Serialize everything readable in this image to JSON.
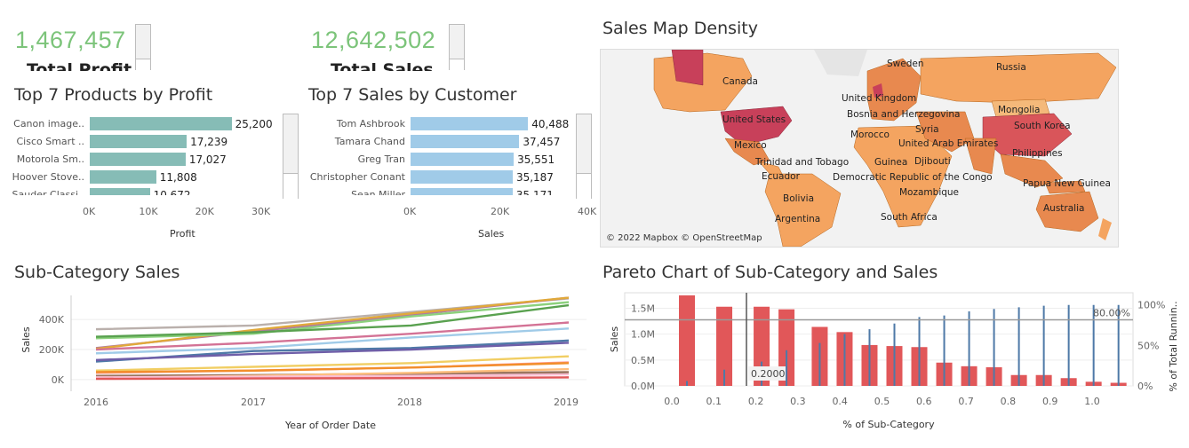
{
  "kpis": {
    "profit": {
      "value": "1,467,457",
      "label": "Total Profit"
    },
    "sales": {
      "value": "12,642,502",
      "label": "Total Sales"
    }
  },
  "top_products": {
    "title": "Top 7 Products by Profit",
    "axis_title": "Profit",
    "ticks": [
      "0K",
      "10K",
      "20K",
      "30K"
    ],
    "bar_color": "#86bcb6",
    "rows": [
      {
        "label": "Canon image..",
        "value": 25200,
        "value_label": "25,200"
      },
      {
        "label": "Cisco Smart ..",
        "value": 17239,
        "value_label": "17,239"
      },
      {
        "label": "Motorola Sm..",
        "value": 17027,
        "value_label": "17,027"
      },
      {
        "label": "Hoover Stove..",
        "value": 11808,
        "value_label": "11,808"
      },
      {
        "label": "Sauder Classi..",
        "value": 10672,
        "value_label": "10,672"
      }
    ]
  },
  "top_customers": {
    "title": "Top 7 Sales by Customer",
    "axis_title": "Sales",
    "ticks": [
      "0K",
      "20K",
      "40K"
    ],
    "bar_color": "#a0cbe8",
    "rows": [
      {
        "label": "Tom Ashbrook",
        "value": 40488,
        "value_label": "40,488"
      },
      {
        "label": "Tamara Chand",
        "value": 37457,
        "value_label": "37,457"
      },
      {
        "label": "Greg Tran",
        "value": 35551,
        "value_label": "35,551"
      },
      {
        "label": "Christopher Conant",
        "value": 35187,
        "value_label": "35,187"
      },
      {
        "label": "Sean Miller",
        "value": 35171,
        "value_label": "35,171"
      }
    ]
  },
  "sales_map": {
    "title": "Sales Map Density",
    "attribution": "© 2022 Mapbox © OpenStreetMap",
    "colors": {
      "ocean": "#ececec",
      "low": "#f4a460",
      "mid": "#e8894f",
      "high": "#c8405a"
    },
    "labels": [
      "Sweden",
      "Russia",
      "Canada",
      "United Kingdom",
      "Bosnia and Herzegovina",
      "Mongolia",
      "United States",
      "Morocco",
      "Syria",
      "South Korea",
      "United Arab Emirates",
      "Mexico",
      "Philippines",
      "Trinidad and Tobago",
      "Guinea",
      "Djibouti",
      "Ecuador",
      "Democratic Republic of the Congo",
      "Papua New Guinea",
      "Mozambique",
      "Bolivia",
      "Australia",
      "Argentina",
      "South Africa"
    ]
  },
  "chart_data": [
    {
      "type": "line",
      "title": "Sub-Category Sales",
      "xlabel": "Year of Order Date",
      "ylabel": "Sales",
      "x": [
        "2016",
        "2017",
        "2018",
        "2019"
      ],
      "y_ticks": [
        "0K",
        "200K",
        "400K"
      ],
      "ylim": [
        -30000,
        560000
      ],
      "series": [
        {
          "color": "#bab0ac",
          "values": [
            335000,
            360000,
            450000,
            540000
          ]
        },
        {
          "color": "#b07aa1",
          "values": [
            210000,
            320000,
            430000,
            545000
          ]
        },
        {
          "color": "#e1a93a",
          "values": [
            205000,
            330000,
            440000,
            545000
          ]
        },
        {
          "color": "#8cd17d",
          "values": [
            275000,
            305000,
            420000,
            515000
          ]
        },
        {
          "color": "#59a14f",
          "values": [
            285000,
            315000,
            360000,
            495000
          ]
        },
        {
          "color": "#d37295",
          "values": [
            200000,
            245000,
            305000,
            380000
          ]
        },
        {
          "color": "#a0cbe8",
          "values": [
            175000,
            210000,
            280000,
            340000
          ]
        },
        {
          "color": "#4e79a7",
          "values": [
            120000,
            190000,
            210000,
            260000
          ]
        },
        {
          "color": "#6f5ea8",
          "values": [
            130000,
            170000,
            200000,
            245000
          ]
        },
        {
          "color": "#f1ce63",
          "values": [
            60000,
            85000,
            110000,
            155000
          ]
        },
        {
          "color": "#ff9d9a",
          "values": [
            45000,
            60000,
            80000,
            115000
          ]
        },
        {
          "color": "#f28e2b",
          "values": [
            50000,
            60000,
            80000,
            110000
          ]
        },
        {
          "color": "#79706e",
          "values": [
            20000,
            25000,
            35000,
            45000
          ]
        },
        {
          "color": "#9d7660",
          "values": [
            25000,
            30000,
            40000,
            50000
          ]
        },
        {
          "color": "#ffbe7d",
          "values": [
            10000,
            25000,
            45000,
            70000
          ]
        },
        {
          "color": "#fabfd2",
          "values": [
            15000,
            20000,
            25000,
            35000
          ]
        },
        {
          "color": "#e15759",
          "values": [
            5000,
            8000,
            10000,
            15000
          ]
        }
      ]
    },
    {
      "type": "bar",
      "title": "Pareto Chart of Sub-Category and Sales",
      "xlabel": "% of Sub-Category",
      "ylabel": "Sales",
      "y2label": "% of Total Runnin..",
      "x_ticks": [
        "0.0",
        "0.1",
        "0.2",
        "0.3",
        "0.4",
        "0.5",
        "0.6",
        "0.7",
        "0.8",
        "0.9",
        "1.0"
      ],
      "y_ticks": [
        "0.0M",
        "0.5M",
        "1.0M",
        "1.5M"
      ],
      "y2_ticks": [
        "0%",
        "50%",
        "100%"
      ],
      "ylim": [
        0,
        1800000
      ],
      "y2lim": [
        0,
        1.15
      ],
      "bar_color": "#e15759",
      "line_color": "#4e79a7",
      "reference_line": {
        "label": "80.00%",
        "value": 0.8
      },
      "reference_x": {
        "label": "0.2000",
        "value": 0.2
      },
      "bars": [
        {
          "x": 0.0,
          "sales": 1750000,
          "running_pct": 0.06
        },
        {
          "x": 0.09,
          "sales": 1530000,
          "running_pct": 0.2
        },
        {
          "x": 0.18,
          "sales": 1530000,
          "running_pct": 0.3
        },
        {
          "x": 0.24,
          "sales": 1480000,
          "running_pct": 0.44
        },
        {
          "x": 0.32,
          "sales": 1140000,
          "running_pct": 0.53
        },
        {
          "x": 0.38,
          "sales": 1040000,
          "running_pct": 0.64
        },
        {
          "x": 0.44,
          "sales": 790000,
          "running_pct": 0.7
        },
        {
          "x": 0.5,
          "sales": 770000,
          "running_pct": 0.77
        },
        {
          "x": 0.56,
          "sales": 750000,
          "running_pct": 0.85
        },
        {
          "x": 0.62,
          "sales": 450000,
          "running_pct": 0.87
        },
        {
          "x": 0.68,
          "sales": 380000,
          "running_pct": 0.92
        },
        {
          "x": 0.74,
          "sales": 360000,
          "running_pct": 0.95
        },
        {
          "x": 0.8,
          "sales": 210000,
          "running_pct": 0.97
        },
        {
          "x": 0.86,
          "sales": 210000,
          "running_pct": 0.99
        },
        {
          "x": 0.92,
          "sales": 150000,
          "running_pct": 1.0
        },
        {
          "x": 0.98,
          "sales": 80000,
          "running_pct": 1.0
        },
        {
          "x": 1.04,
          "sales": 60000,
          "running_pct": 1.0
        }
      ]
    }
  ]
}
